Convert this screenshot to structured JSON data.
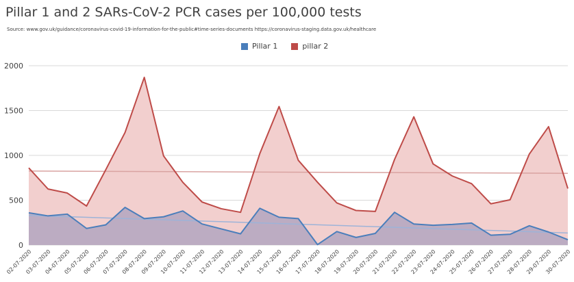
{
  "chart_data": {
    "type": "area",
    "title": "Pillar 1 and 2 SARs-CoV-2 PCR cases per 100,000 tests",
    "subtitle": "Source: www.gov.uk/guidance/coronavirus-covid-19-information-for-the-public#time-series-documents  https://coronavirus-staging.data.gov.uk/healthcare",
    "xlabel": "",
    "ylabel": "",
    "ylim": [
      0,
      2000
    ],
    "yticks": [
      0,
      500,
      1000,
      1500,
      2000
    ],
    "grid": true,
    "legend_position": "top-center",
    "categories": [
      "02-07-2020",
      "03-07-2020",
      "04-07-2020",
      "05-07-2020",
      "06-07-2020",
      "07-07-2020",
      "08-07-2020",
      "09-07-2020",
      "10-07-2020",
      "11-07-2020",
      "12-07-2020",
      "13-07-2020",
      "14-07-2020",
      "15-07-2020",
      "16-07-2020",
      "17-07-2020",
      "18-07-2020",
      "19-07-2020",
      "20-07-2020",
      "21-07-2020",
      "22-07-2020",
      "23-07-2020",
      "24-07-2020",
      "25-07-2020",
      "26-07-2020",
      "27-07-2020",
      "28-07-2020",
      "29-07-2020",
      "30-07-2020"
    ],
    "series": [
      {
        "name": "Pillar 1",
        "color": "#4a7ebb",
        "fill": "#b3a6c0",
        "values": [
          360,
          325,
          345,
          185,
          225,
          420,
          295,
          315,
          380,
          235,
          180,
          125,
          410,
          310,
          295,
          5,
          150,
          85,
          130,
          365,
          235,
          220,
          230,
          245,
          110,
          120,
          215,
          145,
          60
        ],
        "trendline": [
          330,
          135
        ]
      },
      {
        "name": "pillar 2",
        "color": "#be4b48",
        "fill": "#f2cfce",
        "values": [
          860,
          625,
          580,
          435,
          840,
          1255,
          1870,
          995,
          700,
          480,
          405,
          365,
          1020,
          1545,
          945,
          700,
          470,
          385,
          375,
          955,
          1430,
          905,
          770,
          685,
          460,
          505,
          1015,
          1320,
          630
        ],
        "trendline": [
          825,
          800
        ]
      }
    ]
  }
}
